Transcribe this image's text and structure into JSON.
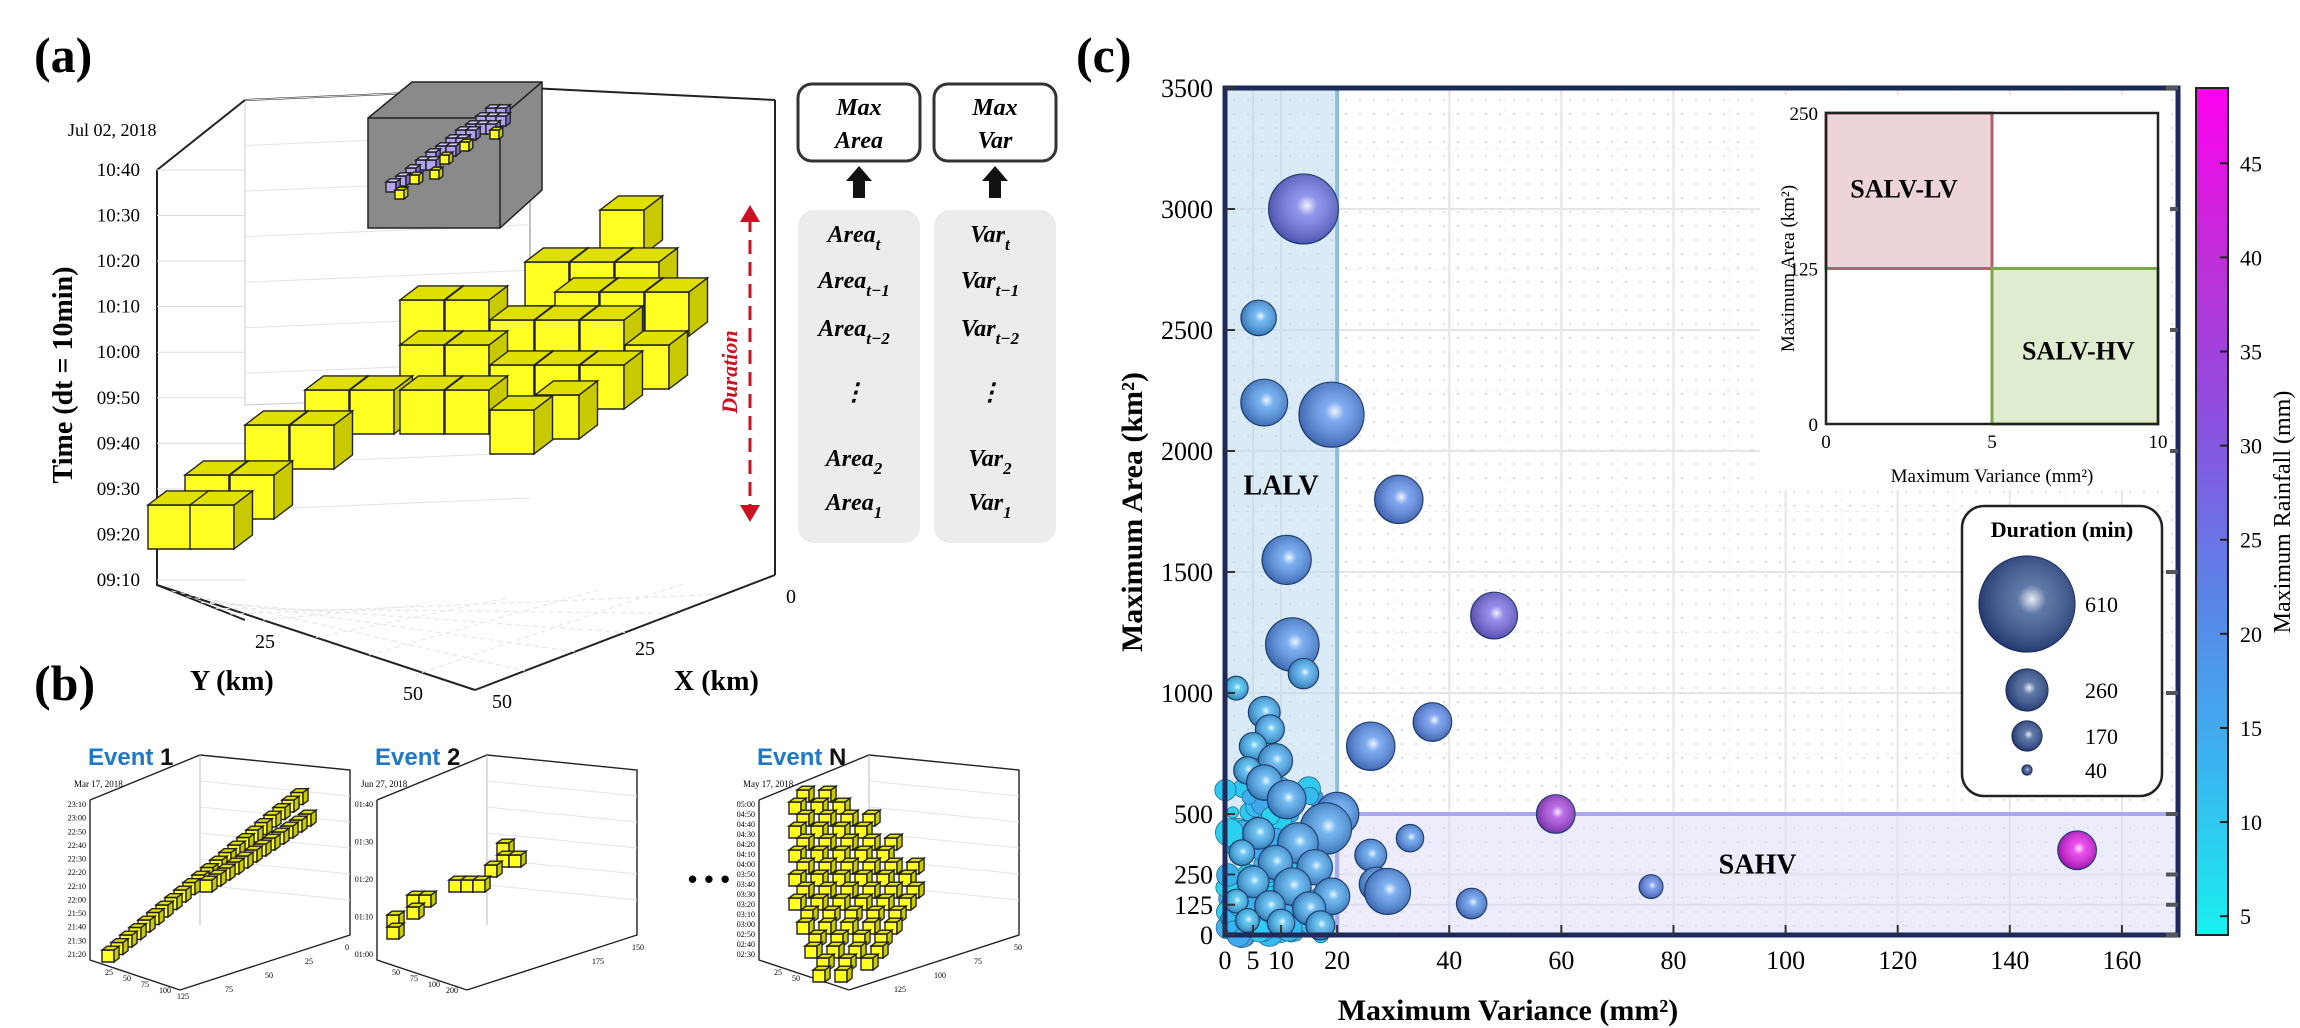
{
  "panel_a": {
    "label": "(a)",
    "date": "Jul 02, 2018",
    "z_label": "Time (dt = 10min)",
    "z_ticks": [
      "09:10",
      "09:20",
      "09:30",
      "09:40",
      "09:50",
      "10:00",
      "10:10",
      "10:20",
      "10:30",
      "10:40"
    ],
    "y_label": "Y (km)",
    "y_ticks": [
      "25",
      "50"
    ],
    "x_label": "X (km)",
    "x_ticks": [
      "0",
      "25",
      "50"
    ],
    "duration_label": "Duration",
    "feature_boxes": [
      {
        "header": [
          "Max",
          "Area"
        ],
        "items": [
          [
            "Area",
            "t"
          ],
          [
            "Area",
            "t−1"
          ],
          [
            "Area",
            "t−2"
          ],
          [
            "⋮",
            ""
          ],
          [
            "Area",
            "2"
          ],
          [
            "Area",
            "1"
          ]
        ]
      },
      {
        "header": [
          "Max",
          "Var"
        ],
        "items": [
          [
            "Var",
            "t"
          ],
          [
            "Var",
            "t−1"
          ],
          [
            "Var",
            "t−2"
          ],
          [
            "⋮",
            ""
          ],
          [
            "Var",
            "2"
          ],
          [
            "Var",
            "1"
          ]
        ]
      }
    ]
  },
  "panel_b": {
    "label": "(b)",
    "events": [
      {
        "word": "Event",
        "num": "1",
        "date": "Mar 17, 2018",
        "zt": [
          "21:20",
          "21:30",
          "21:40",
          "21:50",
          "22:00",
          "22:10",
          "22:20",
          "22:30",
          "22:40",
          "22:50",
          "23:00",
          "23:10"
        ],
        "yt": [
          "25",
          "50",
          "75",
          "100",
          "125"
        ],
        "xt": [
          "0",
          "25",
          "50",
          "75"
        ]
      },
      {
        "word": "Event",
        "num": "2",
        "date": "Jun 27, 2018",
        "zt": [
          "01:00",
          "01:10",
          "01:20",
          "01:30",
          "01:40"
        ],
        "yt": [
          "50",
          "75",
          "100",
          "200"
        ],
        "xt": [
          "150",
          "175"
        ]
      },
      {
        "word": "Event",
        "num": "N",
        "date": "May 17, 2018",
        "zt": [
          "02:30",
          "02:40",
          "02:50",
          "03:00",
          "03:10",
          "03:20",
          "03:30",
          "03:40",
          "03:50",
          "04:00",
          "04:10",
          "04:20",
          "04:30",
          "04:40",
          "04:50",
          "05:00"
        ],
        "yt": [
          "25",
          "50"
        ],
        "xt": [
          "50",
          "75",
          "100",
          "125"
        ]
      }
    ],
    "ellipsis": "• • •"
  },
  "panel_c": {
    "label": "(c)"
  },
  "chart_data": {
    "type": "scatter",
    "xlabel": "Maximum Variance (mm²)",
    "ylabel": "Maximum Area (km²)",
    "xlim": [
      0,
      170
    ],
    "ylim": [
      0,
      3500
    ],
    "x_ticks": [
      "0",
      "5",
      "10",
      "20",
      "40",
      "60",
      "80",
      "100",
      "120",
      "140",
      "160"
    ],
    "y_ticks": [
      "0",
      "125",
      "250",
      "500",
      "1000",
      "1500",
      "2000",
      "2500",
      "3000",
      "3500"
    ],
    "grid": true,
    "regions": [
      {
        "label": "LALV",
        "x": [
          0,
          20
        ],
        "y": [
          0,
          3500
        ],
        "color": "#bcd8ee"
      },
      {
        "label": "SAHV",
        "x": [
          20,
          170
        ],
        "y": [
          0,
          500
        ],
        "color": "#dcdcf5"
      }
    ],
    "colorbar": {
      "label": "Maximum Rainfall (mm)",
      "min": 4,
      "max": 49,
      "ticks": [
        "5",
        "10",
        "15",
        "20",
        "25",
        "30",
        "35",
        "40",
        "45"
      ],
      "colors": [
        "#19f0f0",
        "#3ab4f0",
        "#5b84e8",
        "#8a52e0",
        "#c02ed8",
        "#ff00f0"
      ]
    },
    "size_legend": {
      "title": "Duration (min)",
      "entries": [
        {
          "label": "610",
          "value": 610
        },
        {
          "label": "260",
          "value": 260
        },
        {
          "label": "170",
          "value": 170
        },
        {
          "label": "40",
          "value": 40
        }
      ]
    },
    "points": [
      {
        "x": 14,
        "y": 3000,
        "d": 610,
        "r": 25
      },
      {
        "x": 6,
        "y": 2550,
        "d": 120,
        "r": 16
      },
      {
        "x": 7,
        "y": 2200,
        "d": 240,
        "r": 18
      },
      {
        "x": 19,
        "y": 2150,
        "d": 520,
        "r": 20
      },
      {
        "x": 31,
        "y": 1800,
        "d": 260,
        "r": 21
      },
      {
        "x": 11,
        "y": 1550,
        "d": 270,
        "r": 19
      },
      {
        "x": 48,
        "y": 1320,
        "d": 240,
        "r": 27
      },
      {
        "x": 12,
        "y": 1200,
        "d": 330,
        "r": 19
      },
      {
        "x": 14,
        "y": 1080,
        "d": 80,
        "r": 15
      },
      {
        "x": 37,
        "y": 880,
        "d": 150,
        "r": 21
      },
      {
        "x": 26,
        "y": 780,
        "d": 260,
        "r": 20
      },
      {
        "x": 2,
        "y": 1020,
        "d": 40,
        "r": 12
      },
      {
        "x": 7,
        "y": 920,
        "d": 90,
        "r": 14
      },
      {
        "x": 8,
        "y": 850,
        "d": 70,
        "r": 14
      },
      {
        "x": 5,
        "y": 780,
        "d": 60,
        "r": 13
      },
      {
        "x": 9,
        "y": 720,
        "d": 110,
        "r": 15
      },
      {
        "x": 4,
        "y": 680,
        "d": 60,
        "r": 13
      },
      {
        "x": 7,
        "y": 630,
        "d": 120,
        "r": 15
      },
      {
        "x": 11,
        "y": 560,
        "d": 150,
        "r": 16
      },
      {
        "x": 20,
        "y": 500,
        "d": 200,
        "r": 18
      },
      {
        "x": 59,
        "y": 500,
        "d": 150,
        "r": 36
      },
      {
        "x": 18,
        "y": 440,
        "d": 300,
        "r": 17
      },
      {
        "x": 6,
        "y": 420,
        "d": 90,
        "r": 14
      },
      {
        "x": 13,
        "y": 380,
        "d": 170,
        "r": 16
      },
      {
        "x": 33,
        "y": 400,
        "d": 60,
        "r": 19
      },
      {
        "x": 26,
        "y": 330,
        "d": 90,
        "r": 18
      },
      {
        "x": 3,
        "y": 340,
        "d": 50,
        "r": 13
      },
      {
        "x": 9,
        "y": 300,
        "d": 110,
        "r": 15
      },
      {
        "x": 16,
        "y": 280,
        "d": 120,
        "r": 16
      },
      {
        "x": 152,
        "y": 350,
        "d": 150,
        "r": 45
      },
      {
        "x": 27,
        "y": 210,
        "d": 110,
        "r": 18
      },
      {
        "x": 29,
        "y": 180,
        "d": 230,
        "r": 19
      },
      {
        "x": 5,
        "y": 220,
        "d": 90,
        "r": 14
      },
      {
        "x": 12,
        "y": 200,
        "d": 140,
        "r": 15
      },
      {
        "x": 19,
        "y": 160,
        "d": 130,
        "r": 16
      },
      {
        "x": 76,
        "y": 200,
        "d": 40,
        "r": 22
      },
      {
        "x": 44,
        "y": 130,
        "d": 80,
        "r": 20
      },
      {
        "x": 2,
        "y": 140,
        "d": 40,
        "r": 12
      },
      {
        "x": 8,
        "y": 120,
        "d": 80,
        "r": 14
      },
      {
        "x": 15,
        "y": 110,
        "d": 100,
        "r": 15
      },
      {
        "x": 4,
        "y": 60,
        "d": 40,
        "r": 12
      },
      {
        "x": 10,
        "y": 50,
        "d": 60,
        "r": 13
      },
      {
        "x": 17,
        "y": 40,
        "d": 70,
        "r": 14
      }
    ],
    "inset": {
      "xlabel": "Maximum Variance (mm²)",
      "ylabel": "Maximum Area (km²)",
      "xlim": [
        0,
        10
      ],
      "ylim": [
        0,
        250
      ],
      "x_ticks": [
        "0",
        "5",
        "10"
      ],
      "y_ticks": [
        "0",
        "125",
        "250"
      ],
      "regions": [
        {
          "label": "SALV-LV",
          "x": [
            0,
            5
          ],
          "y": [
            125,
            250
          ],
          "color": "#ecd4d8"
        },
        {
          "label": "SALV-HV",
          "x": [
            5,
            10
          ],
          "y": [
            0,
            125
          ],
          "color": "#dfeccf"
        }
      ]
    }
  }
}
